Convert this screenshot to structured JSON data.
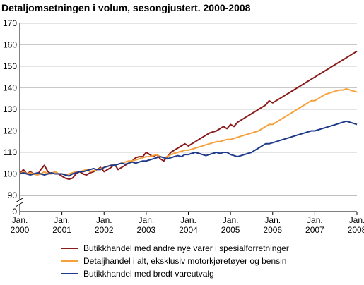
{
  "chart_data": {
    "type": "line",
    "title": "Detaljomsetningen i volum, sesongjustert. 2000-2008",
    "xlabel": "",
    "ylabel": "",
    "x_range": [
      "2000-01",
      "2008-01"
    ],
    "ylim": [
      90,
      170
    ],
    "axis_break": true,
    "y_ticks": [
      0,
      90,
      100,
      110,
      120,
      130,
      140,
      150,
      160,
      170
    ],
    "x_tick_labels": [
      [
        "Jan.",
        "2000"
      ],
      [
        "Jan.",
        "2001"
      ],
      [
        "Jan.",
        "2002"
      ],
      [
        "Jan.",
        "2003"
      ],
      [
        "Jan.",
        "2004"
      ],
      [
        "Jan.",
        "2005"
      ],
      [
        "Jan.",
        "2006"
      ],
      [
        "Jan.",
        "2007"
      ],
      [
        "Jan.",
        "2008"
      ]
    ],
    "grid": true,
    "legend_position": "bottom",
    "series": [
      {
        "name": "Butikkhandel med andre nye varer i spesialforretninger",
        "color": "#8b1a1a",
        "values": [
          100,
          102,
          100,
          101,
          100,
          99.5,
          102,
          104,
          101,
          100,
          101,
          100,
          99,
          98,
          97.5,
          98,
          100,
          101,
          100,
          99.5,
          100.5,
          101,
          102,
          103,
          101,
          102,
          103,
          104.5,
          102,
          103,
          104,
          105,
          106,
          107.5,
          108,
          108,
          110,
          109,
          108,
          109,
          107,
          106,
          108,
          110,
          111,
          112,
          113,
          114,
          113,
          114,
          115,
          116,
          117,
          118,
          119,
          119.5,
          120,
          121,
          122,
          121,
          123,
          122,
          124,
          125,
          126,
          127,
          128,
          129,
          130,
          131,
          132,
          134,
          133,
          134,
          135,
          136,
          137,
          138,
          139,
          140,
          141,
          142,
          143,
          144,
          145,
          146,
          147,
          148,
          149,
          150,
          151,
          152,
          153,
          154,
          155,
          156,
          157
        ]
      },
      {
        "name": "Detaljhandel i alt, eksklusiv motorkjøretøyer og bensin",
        "color": "#f5a13c",
        "values": [
          100,
          101,
          100,
          100.5,
          100,
          99.5,
          100,
          101,
          100,
          100,
          101,
          100,
          100,
          99.5,
          100,
          100.5,
          101,
          101,
          101.5,
          102,
          101,
          101.5,
          102,
          102.5,
          103,
          103.5,
          104,
          104,
          104.5,
          105,
          105.5,
          106,
          106,
          106.5,
          107,
          107.5,
          108,
          108,
          108.5,
          109,
          108,
          107.5,
          108,
          109,
          109.5,
          110,
          110.5,
          111,
          111,
          111.5,
          112,
          112.5,
          113,
          113.5,
          114,
          114.5,
          115,
          115,
          115.5,
          116,
          116,
          116.5,
          117,
          117.5,
          118,
          118.5,
          119,
          119.5,
          120,
          121,
          122,
          123,
          123,
          124,
          125,
          126,
          127,
          128,
          129,
          130,
          131,
          132,
          133,
          134,
          134,
          135,
          136,
          137,
          137.5,
          138,
          138.5,
          139,
          139,
          139.5,
          139,
          138.5,
          138
        ]
      },
      {
        "name": "Butikkhandel med bredt vareutvalg",
        "color": "#1f3a8a",
        "values": [
          100,
          100.5,
          100,
          99.5,
          100,
          100.5,
          100,
          99.5,
          100,
          100.5,
          100,
          100,
          100,
          99.5,
          99,
          100,
          100.5,
          101,
          101,
          101.5,
          102,
          102.5,
          102,
          102,
          103,
          103.5,
          104,
          104,
          104.5,
          105,
          104.5,
          105,
          105.5,
          105,
          105.5,
          106,
          106,
          106.5,
          107,
          107.5,
          108,
          107.5,
          107,
          107.5,
          108,
          108.5,
          108,
          109,
          109,
          109.5,
          110,
          109.5,
          109,
          108.5,
          109,
          109.5,
          110,
          109.5,
          110,
          110,
          109,
          108.5,
          108,
          108.5,
          109,
          109.5,
          110,
          111,
          112,
          113,
          114,
          114,
          114.5,
          115,
          115.5,
          116,
          116.5,
          117,
          117.5,
          118,
          118.5,
          119,
          119.5,
          120,
          120,
          120.5,
          121,
          121.5,
          122,
          122.5,
          123,
          123.5,
          124,
          124.5,
          124,
          123.5,
          123
        ]
      }
    ]
  }
}
